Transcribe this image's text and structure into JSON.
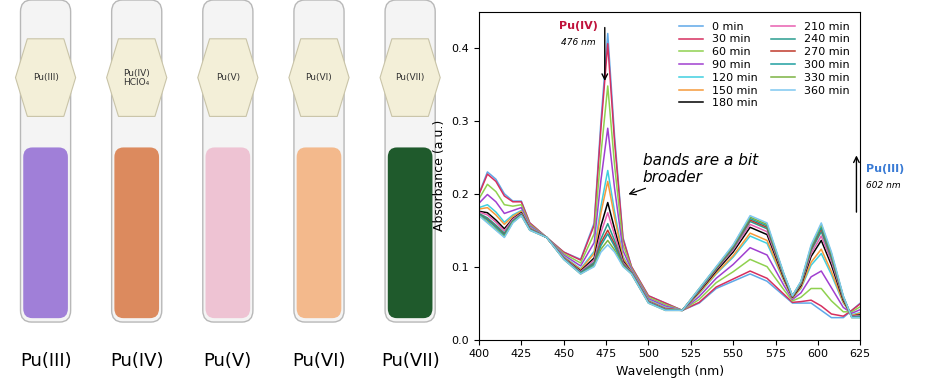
{
  "tubes": [
    {
      "label": "Pu(III)",
      "tag": "Pu(III)",
      "color": "#a07fd8"
    },
    {
      "label": "Pu(IV)",
      "tag": "Pu(IV)\nHClO₄",
      "color": "#dc8a5e"
    },
    {
      "label": "Pu(V)",
      "tag": "Pu(V)",
      "color": "#eec3d3"
    },
    {
      "label": "Pu(VI)",
      "tag": "Pu(VI)",
      "color": "#f3b98c"
    },
    {
      "label": "Pu(VII)",
      "tag": "Pu(VII)",
      "color": "#1f5a2c"
    }
  ],
  "chart_data": {
    "type": "line",
    "xlabel": "Wavelength (nm)",
    "ylabel": "Absorbance (a.u.)",
    "xlim": [
      400,
      625
    ],
    "xticks": [
      400,
      425,
      450,
      475,
      500,
      525,
      550,
      575,
      600,
      625
    ],
    "ylim": [
      0,
      0.45
    ],
    "yticks": [
      {
        "value": 0,
        "label": "0.0"
      },
      0.1,
      0.2,
      0.3,
      0.4
    ],
    "grid": false,
    "legend": "upper right",
    "annotations": [
      {
        "text": "Pu(IV)",
        "subtext": "476 nm",
        "color": "#c0143c"
      },
      {
        "text": "Pu(III)",
        "subtext": "602 nm",
        "color": "#3a7bd5"
      },
      {
        "text": "bands are a bit\nbroader"
      }
    ],
    "x": [
      400,
      405,
      410,
      415,
      420,
      425,
      430,
      440,
      450,
      460,
      468,
      472,
      476,
      480,
      485,
      490,
      500,
      510,
      520,
      530,
      540,
      550,
      560,
      570,
      580,
      585,
      590,
      596,
      602,
      608,
      615,
      620,
      625
    ],
    "series": [
      {
        "name": "0 min",
        "color": "#5fa8e8",
        "values": [
          0.2,
          0.23,
          0.22,
          0.2,
          0.19,
          0.19,
          0.16,
          0.14,
          0.12,
          0.11,
          0.16,
          0.3,
          0.42,
          0.28,
          0.14,
          0.1,
          0.06,
          0.05,
          0.04,
          0.05,
          0.07,
          0.08,
          0.09,
          0.08,
          0.06,
          0.05,
          0.05,
          0.05,
          0.04,
          0.03,
          0.03,
          0.04,
          0.05
        ]
      },
      {
        "name": "30 min",
        "color": "#d62f5f",
        "values": [
          0.199,
          0.227,
          0.217,
          0.197,
          0.189,
          0.189,
          0.16,
          0.14,
          0.12,
          0.109,
          0.157,
          0.291,
          0.406,
          0.272,
          0.138,
          0.1,
          0.06,
          0.05,
          0.04,
          0.051,
          0.072,
          0.083,
          0.094,
          0.084,
          0.062,
          0.051,
          0.052,
          0.054,
          0.046,
          0.035,
          0.032,
          0.04,
          0.049
        ]
      },
      {
        "name": "60 min",
        "color": "#8fd14f",
        "values": [
          0.193,
          0.213,
          0.203,
          0.185,
          0.183,
          0.185,
          0.158,
          0.14,
          0.118,
          0.105,
          0.145,
          0.255,
          0.348,
          0.24,
          0.13,
          0.098,
          0.058,
          0.048,
          0.04,
          0.055,
          0.078,
          0.093,
          0.11,
          0.1,
          0.068,
          0.053,
          0.058,
          0.07,
          0.07,
          0.053,
          0.038,
          0.038,
          0.045
        ]
      },
      {
        "name": "90 min",
        "color": "#a040d0",
        "values": [
          0.187,
          0.199,
          0.189,
          0.173,
          0.177,
          0.181,
          0.156,
          0.14,
          0.116,
          0.101,
          0.133,
          0.219,
          0.29,
          0.208,
          0.122,
          0.096,
          0.056,
          0.046,
          0.04,
          0.059,
          0.084,
          0.103,
          0.126,
          0.116,
          0.074,
          0.055,
          0.064,
          0.086,
          0.094,
          0.071,
          0.044,
          0.036,
          0.041
        ]
      },
      {
        "name": "120 min",
        "color": "#40d0e0",
        "values": [
          0.181,
          0.185,
          0.175,
          0.161,
          0.171,
          0.177,
          0.154,
          0.14,
          0.114,
          0.097,
          0.121,
          0.183,
          0.232,
          0.176,
          0.114,
          0.094,
          0.054,
          0.044,
          0.04,
          0.063,
          0.09,
          0.113,
          0.142,
          0.132,
          0.08,
          0.057,
          0.07,
          0.102,
          0.118,
          0.089,
          0.05,
          0.034,
          0.037
        ]
      },
      {
        "name": "150 min",
        "color": "#f59a3a",
        "values": [
          0.179,
          0.181,
          0.171,
          0.158,
          0.169,
          0.176,
          0.153,
          0.14,
          0.113,
          0.096,
          0.118,
          0.174,
          0.217,
          0.168,
          0.112,
          0.093,
          0.053,
          0.043,
          0.04,
          0.064,
          0.091,
          0.115,
          0.146,
          0.136,
          0.081,
          0.057,
          0.071,
          0.106,
          0.124,
          0.093,
          0.051,
          0.033,
          0.036
        ]
      },
      {
        "name": "180 min",
        "color": "#000000",
        "values": [
          0.176,
          0.174,
          0.164,
          0.152,
          0.166,
          0.174,
          0.152,
          0.14,
          0.112,
          0.094,
          0.112,
          0.156,
          0.188,
          0.152,
          0.108,
          0.092,
          0.052,
          0.042,
          0.04,
          0.066,
          0.094,
          0.12,
          0.154,
          0.144,
          0.084,
          0.058,
          0.074,
          0.114,
          0.136,
          0.102,
          0.054,
          0.032,
          0.034
        ]
      },
      {
        "name": "210 min",
        "color": "#e85fb0",
        "values": [
          0.175,
          0.171,
          0.161,
          0.149,
          0.165,
          0.173,
          0.152,
          0.14,
          0.112,
          0.093,
          0.109,
          0.147,
          0.174,
          0.144,
          0.106,
          0.092,
          0.052,
          0.042,
          0.04,
          0.067,
          0.096,
          0.123,
          0.158,
          0.148,
          0.086,
          0.059,
          0.076,
          0.118,
          0.142,
          0.107,
          0.056,
          0.032,
          0.033
        ]
      },
      {
        "name": "240 min",
        "color": "#2a9d8f",
        "values": [
          0.173,
          0.167,
          0.157,
          0.146,
          0.163,
          0.172,
          0.151,
          0.14,
          0.111,
          0.092,
          0.106,
          0.138,
          0.159,
          0.136,
          0.104,
          0.091,
          0.051,
          0.041,
          0.04,
          0.068,
          0.097,
          0.125,
          0.162,
          0.152,
          0.087,
          0.059,
          0.077,
          0.122,
          0.148,
          0.111,
          0.057,
          0.031,
          0.032
        ]
      },
      {
        "name": "270 min",
        "color": "#c0392b",
        "values": [
          0.172,
          0.165,
          0.155,
          0.144,
          0.162,
          0.171,
          0.151,
          0.14,
          0.111,
          0.091,
          0.104,
          0.133,
          0.15,
          0.131,
          0.103,
          0.091,
          0.051,
          0.041,
          0.04,
          0.069,
          0.098,
          0.127,
          0.164,
          0.154,
          0.088,
          0.059,
          0.078,
          0.124,
          0.152,
          0.114,
          0.058,
          0.031,
          0.031
        ]
      },
      {
        "name": "300 min",
        "color": "#1f9fa0",
        "values": [
          0.172,
          0.164,
          0.154,
          0.143,
          0.162,
          0.171,
          0.151,
          0.14,
          0.111,
          0.091,
          0.103,
          0.129,
          0.145,
          0.128,
          0.102,
          0.091,
          0.051,
          0.041,
          0.04,
          0.069,
          0.099,
          0.128,
          0.166,
          0.156,
          0.089,
          0.06,
          0.079,
          0.126,
          0.154,
          0.116,
          0.059,
          0.031,
          0.031
        ]
      },
      {
        "name": "330 min",
        "color": "#7cb342",
        "values": [
          0.171,
          0.161,
          0.151,
          0.141,
          0.161,
          0.17,
          0.15,
          0.14,
          0.11,
          0.09,
          0.101,
          0.124,
          0.136,
          0.123,
          0.101,
          0.09,
          0.05,
          0.04,
          0.04,
          0.07,
          0.099,
          0.129,
          0.168,
          0.158,
          0.089,
          0.06,
          0.079,
          0.128,
          0.158,
          0.118,
          0.059,
          0.03,
          0.03
        ]
      },
      {
        "name": "360 min",
        "color": "#7ec8f0",
        "values": [
          0.17,
          0.16,
          0.15,
          0.14,
          0.16,
          0.17,
          0.15,
          0.14,
          0.11,
          0.09,
          0.1,
          0.12,
          0.13,
          0.12,
          0.1,
          0.09,
          0.05,
          0.04,
          0.04,
          0.07,
          0.1,
          0.13,
          0.17,
          0.16,
          0.09,
          0.06,
          0.08,
          0.13,
          0.16,
          0.12,
          0.06,
          0.03,
          0.03
        ]
      }
    ]
  }
}
